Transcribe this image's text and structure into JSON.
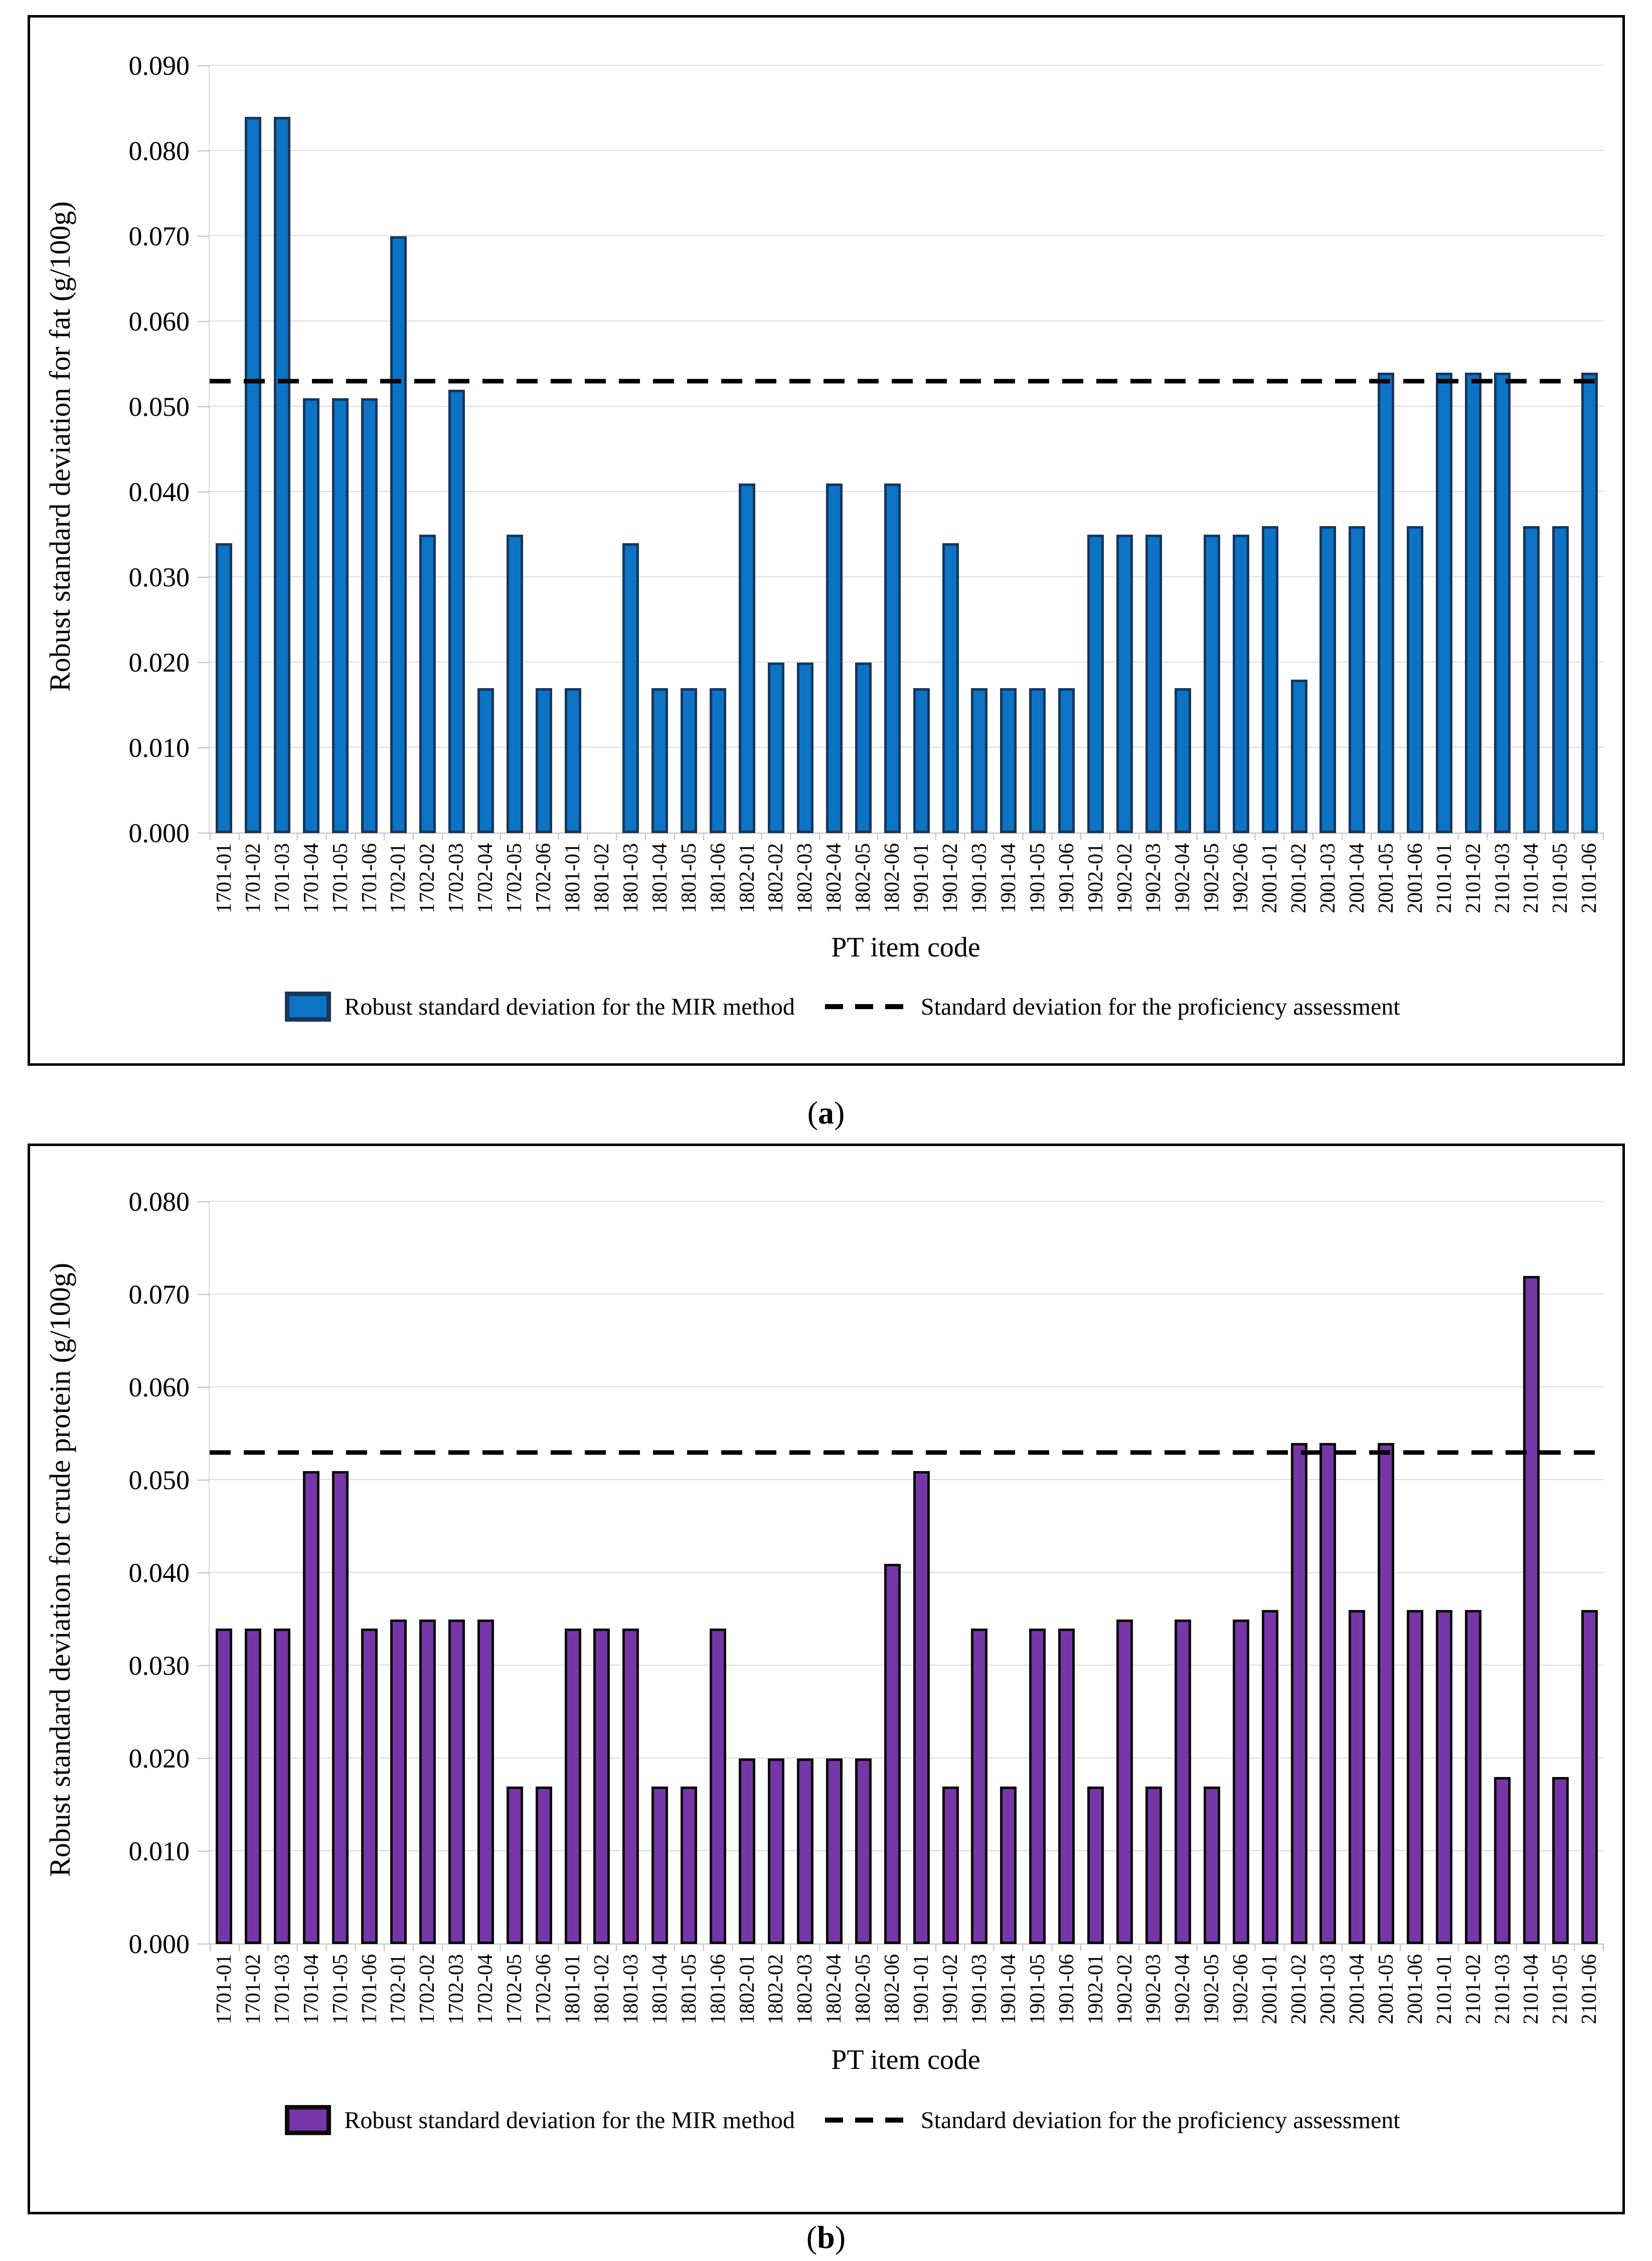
{
  "chart_data": [
    {
      "type": "bar",
      "panel": "a",
      "ylabel": "Robust standard deviation for fat (g/100g)",
      "xlabel": "PT item code",
      "ylim": [
        0,
        0.09
      ],
      "ytick_step": 0.01,
      "ytick_labels": [
        "0.000",
        "0.010",
        "0.020",
        "0.030",
        "0.040",
        "0.050",
        "0.060",
        "0.070",
        "0.080",
        "0.090"
      ],
      "grid": true,
      "legend_position": "bottom",
      "categories": [
        "1701-01",
        "1701-02",
        "1701-03",
        "1701-04",
        "1701-05",
        "1701-06",
        "1702-01",
        "1702-02",
        "1702-03",
        "1702-04",
        "1702-05",
        "1702-06",
        "1801-01",
        "1801-02",
        "1801-03",
        "1801-04",
        "1801-05",
        "1801-06",
        "1802-01",
        "1802-02",
        "1802-03",
        "1802-04",
        "1802-05",
        "1802-06",
        "1901-01",
        "1901-02",
        "1901-03",
        "1901-04",
        "1901-05",
        "1901-06",
        "1902-01",
        "1902-02",
        "1902-03",
        "1902-04",
        "1902-05",
        "1902-06",
        "2001-01",
        "2001-02",
        "2001-03",
        "2001-04",
        "2001-05",
        "2001-06",
        "2101-01",
        "2101-02",
        "2101-03",
        "2101-04",
        "2101-05",
        "2101-06"
      ],
      "series": [
        {
          "name": "Robust standard deviation for the MIR method",
          "values": [
            0.034,
            0.084,
            0.084,
            0.051,
            0.051,
            0.051,
            0.07,
            0.035,
            0.052,
            0.017,
            0.035,
            0.017,
            0.017,
            null,
            0.034,
            0.017,
            0.017,
            0.017,
            0.041,
            0.02,
            0.02,
            0.041,
            0.02,
            0.041,
            0.017,
            0.034,
            0.017,
            0.017,
            0.017,
            0.017,
            0.035,
            0.035,
            0.035,
            0.017,
            0.035,
            0.035,
            0.036,
            0.018,
            0.036,
            0.036,
            0.054,
            0.036,
            0.054,
            0.054,
            0.054,
            0.036,
            0.036,
            0.054
          ]
        }
      ],
      "reference_line": {
        "name": "Standard deviation for the proficiency assessment",
        "value": 0.053
      },
      "colors": {
        "bar_fill": "#0D73C4",
        "bar_border": "#17375E",
        "reference": "#000000"
      },
      "caption": {
        "prefix": "(",
        "letter": "a",
        "suffix": ")"
      }
    },
    {
      "type": "bar",
      "panel": "b",
      "ylabel": "Robust standard deviation for crude protein (g/100g)",
      "xlabel": "PT item code",
      "ylim": [
        0,
        0.08
      ],
      "ytick_step": 0.01,
      "ytick_labels": [
        "0.000",
        "0.010",
        "0.020",
        "0.030",
        "0.040",
        "0.050",
        "0.060",
        "0.070",
        "0.080"
      ],
      "grid": true,
      "legend_position": "bottom",
      "categories": [
        "1701-01",
        "1701-02",
        "1701-03",
        "1701-04",
        "1701-05",
        "1701-06",
        "1702-01",
        "1702-02",
        "1702-03",
        "1702-04",
        "1702-05",
        "1702-06",
        "1801-01",
        "1801-02",
        "1801-03",
        "1801-04",
        "1801-05",
        "1801-06",
        "1802-01",
        "1802-02",
        "1802-03",
        "1802-04",
        "1802-05",
        "1802-06",
        "1901-01",
        "1901-02",
        "1901-03",
        "1901-04",
        "1901-05",
        "1901-06",
        "1902-01",
        "1902-02",
        "1902-03",
        "1902-04",
        "1902-05",
        "1902-06",
        "2001-01",
        "2001-02",
        "2001-03",
        "2001-04",
        "2001-05",
        "2001-06",
        "2101-01",
        "2101-02",
        "2101-03",
        "2101-04",
        "2101-05",
        "2101-06"
      ],
      "series": [
        {
          "name": "Robust standard deviation for the MIR method",
          "values": [
            0.034,
            0.034,
            0.034,
            0.051,
            0.051,
            0.034,
            0.035,
            0.035,
            0.035,
            0.035,
            0.017,
            0.017,
            0.034,
            0.034,
            0.034,
            0.017,
            0.017,
            0.034,
            0.02,
            0.02,
            0.02,
            0.02,
            0.02,
            0.041,
            0.051,
            0.017,
            0.034,
            0.017,
            0.034,
            0.034,
            0.017,
            0.035,
            0.017,
            0.035,
            0.017,
            0.035,
            0.036,
            0.054,
            0.054,
            0.036,
            0.054,
            0.036,
            0.036,
            0.036,
            0.018,
            0.072,
            0.018,
            0.036
          ]
        }
      ],
      "reference_line": {
        "name": "Standard deviation for the proficiency assessment",
        "value": 0.053
      },
      "colors": {
        "bar_fill": "#7636A8",
        "bar_border": "#0A0A0A",
        "reference": "#000000"
      },
      "caption": {
        "prefix": "(",
        "letter": "b",
        "suffix": ")"
      }
    }
  ],
  "style_colors": {
    "grid": "#DCDCDC",
    "axis": "#BFBFBF",
    "frame_border": "#000000"
  }
}
